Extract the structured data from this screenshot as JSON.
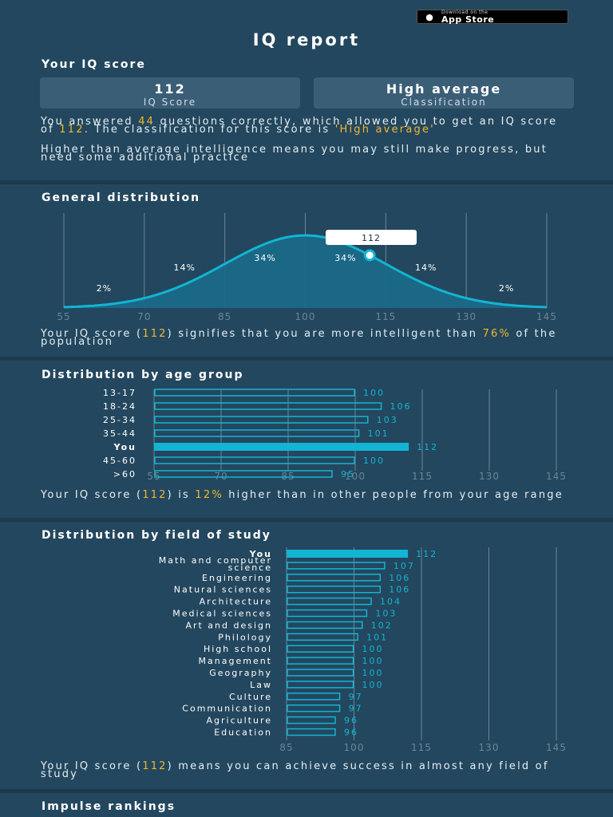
{
  "store_badge": {
    "small": "Download on the",
    "big": "App Store",
    "icon": "apple-icon"
  },
  "title": "IQ report",
  "score_section": {
    "title": "Your IQ score",
    "score_value": "112",
    "score_label": "IQ Score",
    "class_value": "High average",
    "class_label": "Classification",
    "p1_a": "You answered ",
    "p1_q": "44",
    "p1_b": " questions correctly, which allowed you to get an IQ score of ",
    "p1_s": "112",
    "p1_c": ". The classification for this score is ",
    "p1_cls": "'High average'",
    "p2": "Higher than average intelligence means you may still make progress, but need some additional practice"
  },
  "general": {
    "title": "General distribution",
    "marker_label": "112",
    "text_a": "Your IQ score (",
    "text_s": "112",
    "text_b": ") signifies that you are more intelligent than ",
    "text_p": "76%",
    "text_c": " of the population"
  },
  "age": {
    "title": "Distribution by age group",
    "text_a": "Your IQ score (",
    "text_s": "112",
    "text_b": ") is ",
    "text_p": "12%",
    "text_c": " higher than in other people from your age range"
  },
  "field": {
    "title": "Distribution by field of study",
    "text_a": "Your IQ score (",
    "text_s": "112",
    "text_b": ") means you can achieve success in almost any field of study"
  },
  "impulse": {
    "title": "Impulse rankings"
  },
  "colors": {
    "accent": "#12b5d3",
    "highlight": "#f0b72f",
    "background": "#23475e"
  },
  "chart_data": [
    {
      "type": "area",
      "title": "General distribution",
      "x_ticks": [
        55,
        70,
        85,
        100,
        115,
        130,
        145
      ],
      "xlim": [
        55,
        145
      ],
      "bands": [
        {
          "range": [
            55,
            70
          ],
          "label": "2%"
        },
        {
          "range": [
            70,
            85
          ],
          "label": "14%"
        },
        {
          "range": [
            85,
            100
          ],
          "label": "34%"
        },
        {
          "range": [
            100,
            115
          ],
          "label": "34%"
        },
        {
          "range": [
            115,
            130
          ],
          "label": "14%"
        },
        {
          "range": [
            130,
            145
          ],
          "label": "2%"
        }
      ],
      "marker": 112,
      "mean": 100,
      "sd": 15
    },
    {
      "type": "bar",
      "title": "Distribution by age group",
      "categories": [
        "13-17",
        "18-24",
        "25-34",
        "35-44",
        "You",
        "45-60",
        ">60"
      ],
      "values": [
        100,
        106,
        103,
        101,
        112,
        100,
        95
      ],
      "highlight": "You",
      "x_ticks": [
        55,
        70,
        85,
        100,
        115,
        130,
        145
      ],
      "xlim": [
        55,
        145
      ]
    },
    {
      "type": "bar",
      "title": "Distribution by field of study",
      "categories": [
        "You",
        "Math and computer science",
        "Engineering",
        "Natural sciences",
        "Architecture",
        "Medical sciences",
        "Art and design",
        "Philology",
        "High school",
        "Management",
        "Geography",
        "Law",
        "Culture",
        "Communication",
        "Agriculture",
        "Education"
      ],
      "values": [
        112,
        107,
        106,
        106,
        104,
        103,
        102,
        101,
        100,
        100,
        100,
        100,
        97,
        97,
        96,
        96
      ],
      "highlight": "You",
      "x_ticks": [
        85,
        100,
        115,
        130,
        145
      ],
      "xlim": [
        85,
        145
      ]
    }
  ]
}
